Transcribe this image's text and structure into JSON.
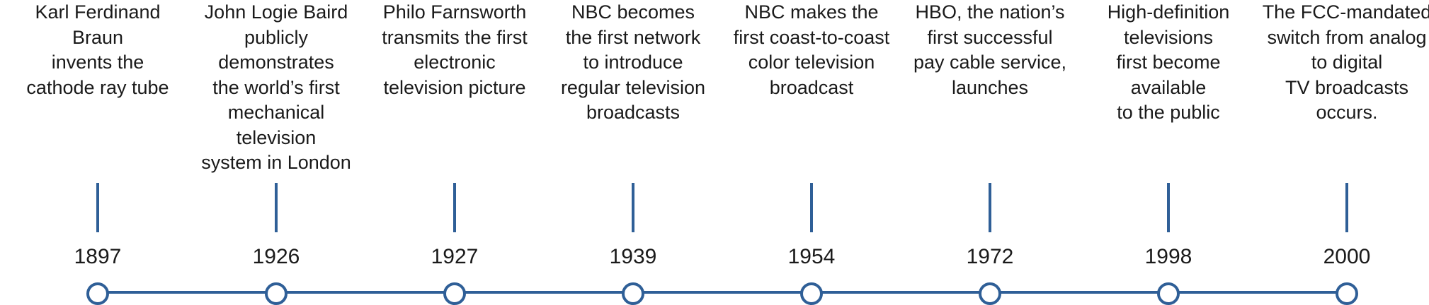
{
  "colors": {
    "line": "#2f5f97",
    "text": "#1a1a1a",
    "background": "#ffffff"
  },
  "events": [
    {
      "year": "1897",
      "description": "Karl Ferdinand Braun\ninvents the\ncathode ray tube"
    },
    {
      "year": "1926",
      "description": "John Logie Baird\npublicly\ndemonstrates\nthe world’s first\nmechanical\ntelevision\nsystem in London"
    },
    {
      "year": "1927",
      "description": "Philo Farnsworth\ntransmits the first\nelectronic\ntelevision picture"
    },
    {
      "year": "1939",
      "description": "NBC becomes\nthe first network\nto introduce\nregular television\nbroadcasts"
    },
    {
      "year": "1954",
      "description": "NBC makes the\nfirst coast-to-coast\ncolor television\nbroadcast"
    },
    {
      "year": "1972",
      "description": "HBO, the nation’s\nfirst successful\npay cable service,\nlaunches"
    },
    {
      "year": "1998",
      "description": "High-definition\ntelevisions\nfirst become\navailable\nto the public"
    },
    {
      "year": "2000",
      "description": "The FCC-mandated\nswitch from analog\nto digital\nTV broadcasts\noccurs."
    }
  ]
}
